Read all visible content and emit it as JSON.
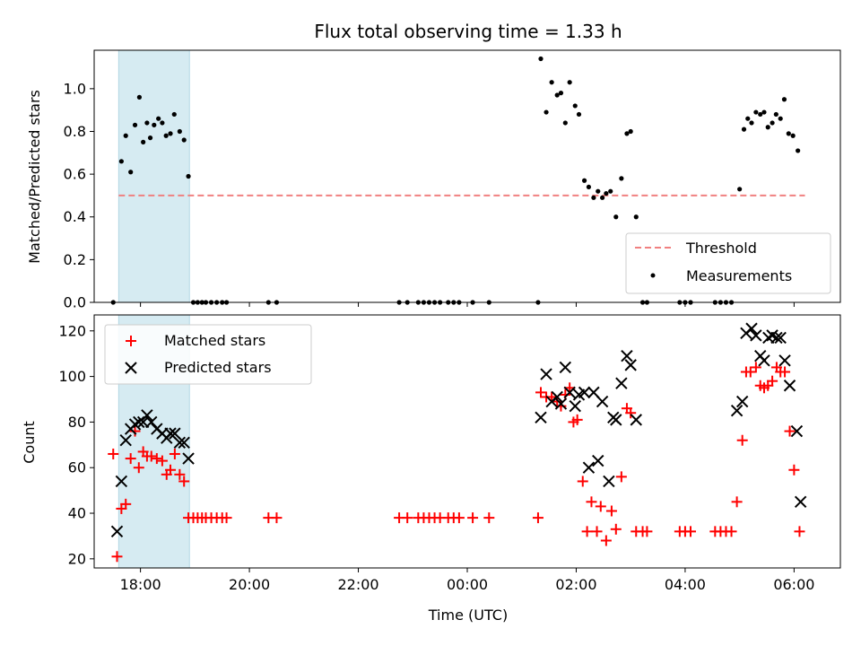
{
  "chart_data": [
    {
      "type": "scatter",
      "title": "Flux total observing time = 1.33 h",
      "xlabel": "",
      "ylabel": "Matched/Predicted stars",
      "ylim": [
        0,
        1.18
      ],
      "xlim": [
        17.15,
        30.85
      ],
      "yticks": [
        0.0,
        0.2,
        0.4,
        0.6,
        0.8,
        1.0
      ],
      "yticklabels": [
        "0.0",
        "0.2",
        "0.4",
        "0.6",
        "0.8",
        "1.0"
      ],
      "highlight_span": [
        17.6,
        18.9
      ],
      "legend": {
        "placement": "bottom-right",
        "entries": [
          "Threshold",
          "Measurements"
        ]
      },
      "threshold": {
        "name": "Threshold",
        "value": 0.5,
        "x_range": [
          17.6,
          30.2
        ],
        "color": "#f08080"
      },
      "measurements": {
        "name": "Measurements",
        "color": "#000000",
        "points": [
          [
            17.5,
            0.0
          ],
          [
            17.65,
            0.66
          ],
          [
            17.73,
            0.78
          ],
          [
            17.82,
            0.61
          ],
          [
            17.9,
            0.83
          ],
          [
            17.98,
            0.96
          ],
          [
            18.05,
            0.75
          ],
          [
            18.12,
            0.84
          ],
          [
            18.18,
            0.77
          ],
          [
            18.25,
            0.83
          ],
          [
            18.33,
            0.86
          ],
          [
            18.4,
            0.84
          ],
          [
            18.47,
            0.78
          ],
          [
            18.55,
            0.79
          ],
          [
            18.62,
            0.88
          ],
          [
            18.72,
            0.8
          ],
          [
            18.8,
            0.76
          ],
          [
            18.88,
            0.59
          ],
          [
            18.97,
            0.0
          ],
          [
            19.05,
            0.0
          ],
          [
            19.13,
            0.0
          ],
          [
            19.2,
            0.0
          ],
          [
            19.3,
            0.0
          ],
          [
            19.4,
            0.0
          ],
          [
            19.5,
            0.0
          ],
          [
            19.58,
            0.0
          ],
          [
            20.35,
            0.0
          ],
          [
            20.5,
            0.0
          ],
          [
            22.75,
            0.0
          ],
          [
            22.9,
            0.0
          ],
          [
            23.1,
            0.0
          ],
          [
            23.2,
            0.0
          ],
          [
            23.3,
            0.0
          ],
          [
            23.4,
            0.0
          ],
          [
            23.5,
            0.0
          ],
          [
            23.65,
            0.0
          ],
          [
            23.75,
            0.0
          ],
          [
            23.85,
            0.0
          ],
          [
            24.1,
            0.0
          ],
          [
            24.4,
            0.0
          ],
          [
            25.3,
            0.0
          ],
          [
            25.35,
            1.14
          ],
          [
            25.45,
            0.89
          ],
          [
            25.55,
            1.03
          ],
          [
            25.65,
            0.97
          ],
          [
            25.72,
            0.98
          ],
          [
            25.8,
            0.84
          ],
          [
            25.88,
            1.03
          ],
          [
            25.98,
            0.92
          ],
          [
            26.05,
            0.88
          ],
          [
            26.15,
            0.57
          ],
          [
            26.23,
            0.54
          ],
          [
            26.32,
            0.49
          ],
          [
            26.4,
            0.52
          ],
          [
            26.48,
            0.49
          ],
          [
            26.55,
            0.51
          ],
          [
            26.63,
            0.52
          ],
          [
            26.73,
            0.4
          ],
          [
            26.83,
            0.58
          ],
          [
            26.93,
            0.79
          ],
          [
            27.0,
            0.8
          ],
          [
            27.1,
            0.4
          ],
          [
            27.22,
            0.0
          ],
          [
            27.3,
            0.0
          ],
          [
            27.9,
            0.0
          ],
          [
            28.0,
            0.0
          ],
          [
            28.1,
            0.0
          ],
          [
            28.55,
            0.0
          ],
          [
            28.65,
            0.0
          ],
          [
            28.75,
            0.0
          ],
          [
            28.85,
            0.0
          ],
          [
            29.0,
            0.53
          ],
          [
            29.08,
            0.81
          ],
          [
            29.15,
            0.86
          ],
          [
            29.22,
            0.84
          ],
          [
            29.3,
            0.89
          ],
          [
            29.38,
            0.88
          ],
          [
            29.45,
            0.89
          ],
          [
            29.52,
            0.82
          ],
          [
            29.6,
            0.84
          ],
          [
            29.67,
            0.88
          ],
          [
            29.75,
            0.86
          ],
          [
            29.82,
            0.95
          ],
          [
            29.9,
            0.79
          ],
          [
            29.98,
            0.78
          ],
          [
            30.07,
            0.71
          ]
        ]
      }
    },
    {
      "type": "scatter",
      "title": "",
      "xlabel": "Time (UTC)",
      "ylabel": "Count",
      "ylim": [
        16,
        127
      ],
      "xlim": [
        17.15,
        30.85
      ],
      "yticks": [
        20,
        40,
        60,
        80,
        100,
        120
      ],
      "yticklabels": [
        "20",
        "40",
        "60",
        "80",
        "100",
        "120"
      ],
      "xticks": [
        18,
        20,
        22,
        24,
        26,
        28,
        30
      ],
      "xticklabels": [
        "18:00",
        "20:00",
        "22:00",
        "00:00",
        "02:00",
        "04:00",
        "06:00"
      ],
      "highlight_span": [
        17.6,
        18.9
      ],
      "legend": {
        "placement": "top-left",
        "entries": [
          "Matched stars",
          "Predicted stars"
        ]
      },
      "series": [
        {
          "name": "Matched stars",
          "marker": "+",
          "color": "#ff0000",
          "points": [
            [
              17.5,
              66
            ],
            [
              17.57,
              21
            ],
            [
              17.65,
              42
            ],
            [
              17.73,
              44
            ],
            [
              17.82,
              64
            ],
            [
              17.9,
              76
            ],
            [
              17.97,
              60
            ],
            [
              18.05,
              67
            ],
            [
              18.12,
              65
            ],
            [
              18.2,
              65
            ],
            [
              18.3,
              64
            ],
            [
              18.4,
              63
            ],
            [
              18.48,
              57
            ],
            [
              18.55,
              59
            ],
            [
              18.63,
              66
            ],
            [
              18.72,
              57
            ],
            [
              18.8,
              54
            ],
            [
              18.88,
              38
            ],
            [
              18.97,
              38
            ],
            [
              19.05,
              38
            ],
            [
              19.13,
              38
            ],
            [
              19.2,
              38
            ],
            [
              19.3,
              38
            ],
            [
              19.4,
              38
            ],
            [
              19.5,
              38
            ],
            [
              19.58,
              38
            ],
            [
              20.35,
              38
            ],
            [
              20.5,
              38
            ],
            [
              22.75,
              38
            ],
            [
              22.9,
              38
            ],
            [
              23.1,
              38
            ],
            [
              23.2,
              38
            ],
            [
              23.3,
              38
            ],
            [
              23.4,
              38
            ],
            [
              23.5,
              38
            ],
            [
              23.65,
              38
            ],
            [
              23.75,
              38
            ],
            [
              23.85,
              38
            ],
            [
              24.1,
              38
            ],
            [
              24.4,
              38
            ],
            [
              25.3,
              38
            ],
            [
              25.35,
              93
            ],
            [
              25.45,
              91
            ],
            [
              25.55,
              91
            ],
            [
              25.65,
              89
            ],
            [
              25.72,
              87
            ],
            [
              25.8,
              92
            ],
            [
              25.88,
              95
            ],
            [
              25.95,
              80
            ],
            [
              26.02,
              81
            ],
            [
              26.12,
              54
            ],
            [
              26.2,
              32
            ],
            [
              26.28,
              45
            ],
            [
              26.38,
              32
            ],
            [
              26.45,
              43
            ],
            [
              26.55,
              28
            ],
            [
              26.65,
              41
            ],
            [
              26.73,
              33
            ],
            [
              26.83,
              56
            ],
            [
              26.93,
              86
            ],
            [
              27.0,
              84
            ],
            [
              27.1,
              32
            ],
            [
              27.22,
              32
            ],
            [
              27.3,
              32
            ],
            [
              27.9,
              32
            ],
            [
              28.0,
              32
            ],
            [
              28.1,
              32
            ],
            [
              28.55,
              32
            ],
            [
              28.65,
              32
            ],
            [
              28.75,
              32
            ],
            [
              28.85,
              32
            ],
            [
              28.95,
              45
            ],
            [
              29.05,
              72
            ],
            [
              29.12,
              102
            ],
            [
              29.2,
              102
            ],
            [
              29.3,
              104
            ],
            [
              29.38,
              96
            ],
            [
              29.45,
              95
            ],
            [
              29.52,
              96
            ],
            [
              29.6,
              98
            ],
            [
              29.68,
              104
            ],
            [
              29.75,
              102
            ],
            [
              29.83,
              102
            ],
            [
              29.92,
              76
            ],
            [
              30.0,
              59
            ],
            [
              30.1,
              32
            ]
          ]
        },
        {
          "name": "Predicted stars",
          "marker": "x",
          "color": "#000000",
          "points": [
            [
              17.57,
              32
            ],
            [
              17.65,
              54
            ],
            [
              17.73,
              72
            ],
            [
              17.82,
              77
            ],
            [
              17.9,
              79
            ],
            [
              17.97,
              80
            ],
            [
              18.05,
              80
            ],
            [
              18.12,
              83
            ],
            [
              18.2,
              80
            ],
            [
              18.3,
              77
            ],
            [
              18.4,
              75
            ],
            [
              18.48,
              73
            ],
            [
              18.55,
              75
            ],
            [
              18.63,
              75
            ],
            [
              18.72,
              71
            ],
            [
              18.8,
              71
            ],
            [
              18.88,
              64
            ],
            [
              25.35,
              82
            ],
            [
              25.45,
              101
            ],
            [
              25.55,
              89
            ],
            [
              25.65,
              91
            ],
            [
              25.72,
              88
            ],
            [
              25.8,
              104
            ],
            [
              25.88,
              93
            ],
            [
              25.98,
              87
            ],
            [
              26.05,
              92
            ],
            [
              26.15,
              93
            ],
            [
              26.23,
              60
            ],
            [
              26.32,
              93
            ],
            [
              26.4,
              63
            ],
            [
              26.48,
              89
            ],
            [
              26.6,
              54
            ],
            [
              26.68,
              82
            ],
            [
              26.73,
              81
            ],
            [
              26.83,
              97
            ],
            [
              26.93,
              109
            ],
            [
              27.0,
              105
            ],
            [
              27.1,
              81
            ],
            [
              28.95,
              85
            ],
            [
              29.05,
              89
            ],
            [
              29.12,
              119
            ],
            [
              29.22,
              121
            ],
            [
              29.3,
              118
            ],
            [
              29.38,
              109
            ],
            [
              29.45,
              107
            ],
            [
              29.53,
              117
            ],
            [
              29.6,
              118
            ],
            [
              29.68,
              117
            ],
            [
              29.75,
              117
            ],
            [
              29.83,
              107
            ],
            [
              29.92,
              96
            ],
            [
              30.05,
              76
            ],
            [
              30.12,
              45
            ]
          ]
        }
      ]
    }
  ]
}
